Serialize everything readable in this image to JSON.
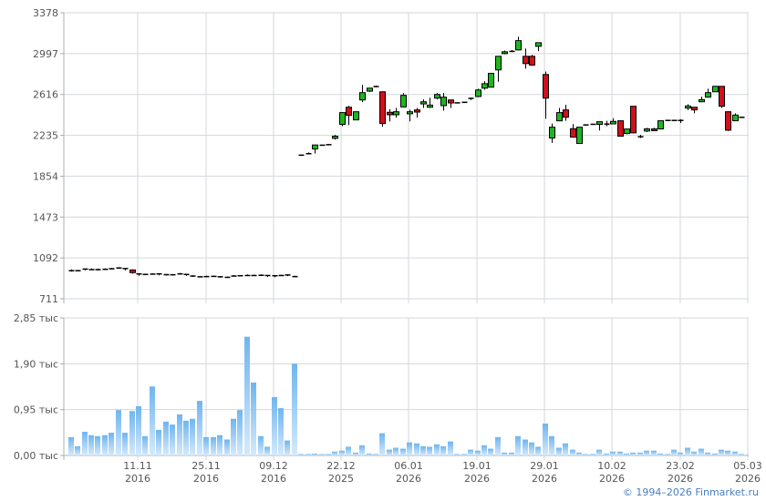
{
  "chart_data": [
    {
      "type": "candlestick",
      "title": "",
      "ylim": [
        711,
        3378
      ],
      "y_ticks": [
        "3378",
        "2997",
        "2616",
        "2235",
        "1854",
        "1473",
        "1092",
        "711"
      ],
      "y_tick_values": [
        3378,
        2997,
        2616,
        2235,
        1854,
        1473,
        1092,
        711
      ],
      "grid": true,
      "colors": {
        "up": "#1fb51f",
        "down": "#d0101a",
        "wick": "#000000"
      },
      "ohlc": [
        [
          975,
          975,
          985,
          965
        ],
        [
          975,
          975,
          980,
          970
        ],
        [
          978,
          990,
          992,
          975
        ],
        [
          985,
          985,
          995,
          980
        ],
        [
          985,
          985,
          992,
          975
        ],
        [
          988,
          988,
          995,
          980
        ],
        [
          993,
          993,
          1000,
          988
        ],
        [
          995,
          1000,
          1005,
          990
        ],
        [
          995,
          985,
          1000,
          975
        ],
        [
          980,
          955,
          985,
          945
        ],
        [
          945,
          935,
          948,
          925
        ],
        [
          940,
          940,
          945,
          935
        ],
        [
          943,
          943,
          948,
          936
        ],
        [
          945,
          937,
          950,
          930
        ],
        [
          938,
          930,
          942,
          928
        ],
        [
          930,
          937,
          940,
          928
        ],
        [
          945,
          945,
          952,
          938
        ],
        [
          940,
          932,
          945,
          925
        ],
        [
          925,
          925,
          930,
          915
        ],
        [
          918,
          918,
          922,
          913
        ],
        [
          920,
          920,
          925,
          915
        ],
        [
          922,
          922,
          928,
          918
        ],
        [
          918,
          913,
          920,
          908
        ],
        [
          913,
          913,
          918,
          908
        ],
        [
          925,
          925,
          932,
          918
        ],
        [
          928,
          928,
          932,
          922
        ],
        [
          930,
          930,
          938,
          925
        ],
        [
          930,
          930,
          935,
          925
        ],
        [
          932,
          932,
          938,
          925
        ],
        [
          930,
          918,
          932,
          915
        ],
        [
          920,
          928,
          930,
          912
        ],
        [
          930,
          930,
          935,
          925
        ],
        [
          935,
          928,
          938,
          922
        ],
        [
          920,
          920,
          925,
          915
        ],
        [
          2052,
          2052,
          2055,
          2050
        ],
        [
          2066,
          2066,
          2075,
          2058
        ],
        [
          2108,
          2145,
          2148,
          2066
        ],
        [
          2145,
          2145,
          2147,
          2143
        ],
        [
          2150,
          2150,
          2152,
          2148
        ],
        [
          2207,
          2227,
          2240,
          2195
        ],
        [
          2337,
          2447,
          2450,
          2320
        ],
        [
          2497,
          2421,
          2510,
          2330
        ],
        [
          2379,
          2455,
          2458,
          2377
        ],
        [
          2565,
          2633,
          2705,
          2545
        ],
        [
          2647,
          2675,
          2678,
          2640
        ],
        [
          2692,
          2692,
          2700,
          2685
        ],
        [
          2641,
          2345,
          2645,
          2315
        ],
        [
          2450,
          2427,
          2480,
          2365
        ],
        [
          2427,
          2455,
          2490,
          2400
        ],
        [
          2500,
          2608,
          2630,
          2495
        ],
        [
          2436,
          2455,
          2475,
          2365
        ],
        [
          2472,
          2452,
          2490,
          2400
        ],
        [
          2528,
          2548,
          2570,
          2490
        ],
        [
          2497,
          2517,
          2585,
          2490
        ],
        [
          2582,
          2616,
          2630,
          2570
        ],
        [
          2512,
          2591,
          2630,
          2465
        ],
        [
          2565,
          2537,
          2568,
          2490
        ],
        [
          2540,
          2540,
          2542,
          2538
        ],
        [
          2545,
          2545,
          2547,
          2543
        ],
        [
          2570,
          2582,
          2586,
          2565
        ],
        [
          2597,
          2658,
          2670,
          2590
        ],
        [
          2675,
          2717,
          2740,
          2660
        ],
        [
          2684,
          2813,
          2816,
          2682
        ],
        [
          2845,
          2972,
          2975,
          2735
        ],
        [
          2997,
          3014,
          3025,
          2990
        ],
        [
          3020,
          3020,
          3030,
          3012
        ],
        [
          3031,
          3118,
          3155,
          3028
        ],
        [
          2972,
          2904,
          3045,
          2857
        ],
        [
          2972,
          2890,
          2985,
          2885
        ],
        [
          3065,
          3099,
          3102,
          3020
        ],
        [
          2802,
          2582,
          2830,
          2390
        ],
        [
          2210,
          2311,
          2345,
          2165
        ],
        [
          2370,
          2447,
          2490,
          2368
        ],
        [
          2472,
          2404,
          2520,
          2370
        ],
        [
          2297,
          2218,
          2340,
          2215
        ],
        [
          2159,
          2311,
          2313,
          2157
        ],
        [
          2334,
          2334,
          2338,
          2330
        ],
        [
          2340,
          2340,
          2342,
          2338
        ],
        [
          2337,
          2362,
          2364,
          2280
        ],
        [
          2342,
          2342,
          2370,
          2320
        ],
        [
          2342,
          2365,
          2395,
          2340
        ],
        [
          2371,
          2227,
          2373,
          2225
        ],
        [
          2252,
          2294,
          2296,
          2245
        ],
        [
          2506,
          2258,
          2508,
          2255
        ],
        [
          2224,
          2224,
          2240,
          2210
        ],
        [
          2275,
          2295,
          2305,
          2265
        ],
        [
          2295,
          2278,
          2305,
          2275
        ],
        [
          2295,
          2371,
          2373,
          2293
        ],
        [
          2376,
          2376,
          2380,
          2372
        ],
        [
          2376,
          2376,
          2380,
          2372
        ],
        [
          2376,
          2376,
          2385,
          2350
        ],
        [
          2489,
          2509,
          2525,
          2470
        ],
        [
          2497,
          2472,
          2500,
          2440
        ],
        [
          2548,
          2568,
          2595,
          2545
        ],
        [
          2591,
          2633,
          2670,
          2588
        ],
        [
          2641,
          2692,
          2695,
          2639
        ],
        [
          2692,
          2506,
          2694,
          2490
        ],
        [
          2455,
          2283,
          2460,
          2275
        ],
        [
          2371,
          2424,
          2440,
          2369
        ],
        [
          2405,
          2405,
          2410,
          2400
        ]
      ]
    },
    {
      "type": "bar",
      "title": "",
      "unit": "тыс",
      "ylim": [
        0,
        2.85
      ],
      "y_ticks": [
        "2,85 тыс",
        "1,90 тыс",
        "0,95 тыс",
        "0,00 тыс"
      ],
      "y_tick_values": [
        2.85,
        1.9,
        0.95,
        0
      ],
      "color": "#7bbcf0",
      "grid": true,
      "values": [
        0.38,
        0.19,
        0.49,
        0.42,
        0.4,
        0.42,
        0.47,
        0.94,
        0.47,
        0.92,
        1.02,
        0.4,
        1.43,
        0.53,
        0.7,
        0.64,
        0.85,
        0.72,
        0.76,
        1.13,
        0.38,
        0.38,
        0.42,
        0.33,
        0.76,
        0.94,
        2.46,
        1.51,
        0.4,
        0.18,
        1.21,
        0.98,
        0.31,
        1.9,
        0.03,
        0.03,
        0.04,
        0.03,
        0.03,
        0.08,
        0.1,
        0.18,
        0.06,
        0.21,
        0.04,
        0.03,
        0.46,
        0.12,
        0.16,
        0.14,
        0.27,
        0.25,
        0.19,
        0.18,
        0.23,
        0.19,
        0.29,
        0.03,
        0.03,
        0.12,
        0.1,
        0.21,
        0.14,
        0.38,
        0.06,
        0.06,
        0.4,
        0.33,
        0.27,
        0.18,
        0.66,
        0.4,
        0.16,
        0.25,
        0.12,
        0.06,
        0.03,
        0.03,
        0.12,
        0.04,
        0.08,
        0.08,
        0.04,
        0.06,
        0.06,
        0.1,
        0.1,
        0.04,
        0.03,
        0.12,
        0.06,
        0.16,
        0.08,
        0.14,
        0.06,
        0.04,
        0.12,
        0.1,
        0.08,
        0.03
      ]
    }
  ],
  "x_axis": {
    "labels": [
      {
        "day": "11.11",
        "year": "2016",
        "index": 9
      },
      {
        "day": "25.11",
        "year": "2016",
        "index": 19
      },
      {
        "day": "09.12",
        "year": "2016",
        "index": 29
      },
      {
        "day": "22.12",
        "year": "2025",
        "index": 39
      },
      {
        "day": "06.01",
        "year": "2026",
        "index": 49
      },
      {
        "day": "19.01",
        "year": "2026",
        "index": 59
      },
      {
        "day": "29.01",
        "year": "2026",
        "index": 69
      },
      {
        "day": "10.02",
        "year": "2026",
        "index": 79
      },
      {
        "day": "23.02",
        "year": "2026",
        "index": 89
      },
      {
        "day": "05.03",
        "year": "2026",
        "index": 99
      }
    ]
  },
  "copyright": "© 1994–2026 Finmarket.ru"
}
